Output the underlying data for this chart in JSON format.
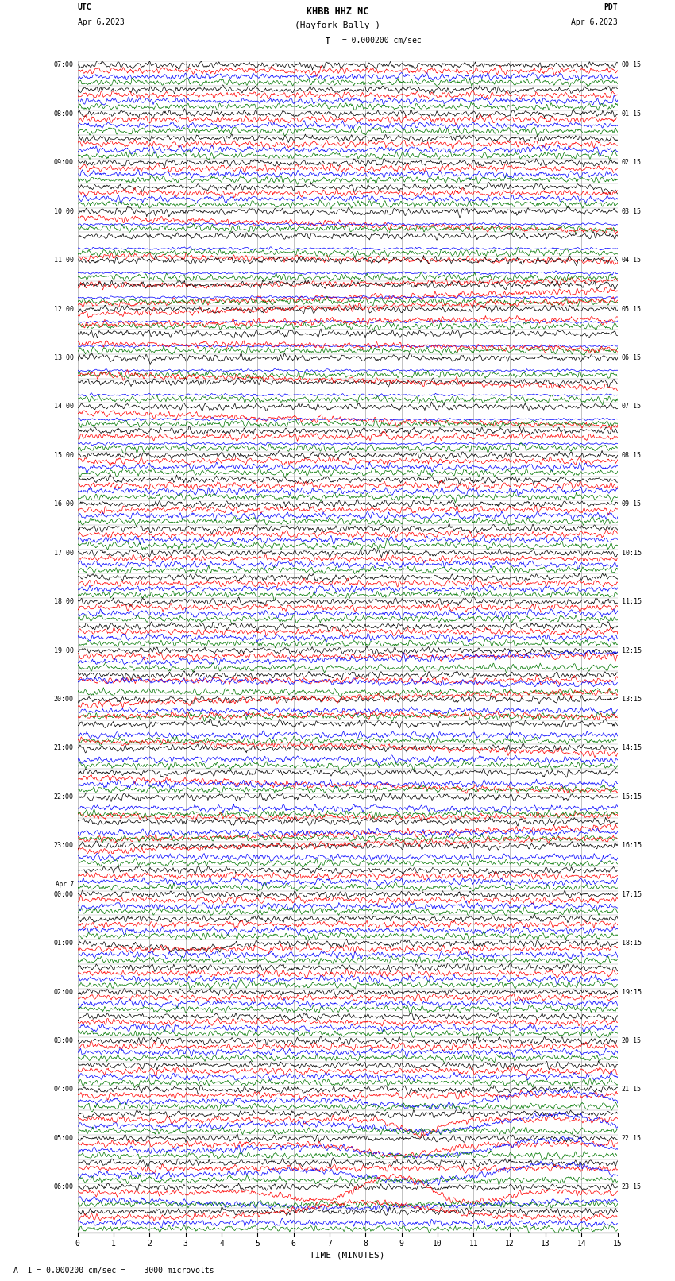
{
  "title_line1": "KHBB HHZ NC",
  "title_line2": "(Hayfork Bally )",
  "scale_text": "= 0.000200 cm/sec",
  "bottom_text": "A  I = 0.000200 cm/sec =    3000 microvolts",
  "utc_label": "UTC",
  "date_left": "Apr 6,2023",
  "pdt_label": "PDT",
  "date_right": "Apr 6,2023",
  "xlabel": "TIME (MINUTES)",
  "fig_width": 8.5,
  "fig_height": 16.13,
  "bg_color": "#ffffff",
  "trace_colors": [
    "#000000",
    "#ff0000",
    "#0000ff",
    "#007700"
  ],
  "grid_color": "#aaaaaa",
  "n_rows": 48,
  "xmin": 0,
  "xmax": 15,
  "xticks": [
    0,
    1,
    2,
    3,
    4,
    5,
    6,
    7,
    8,
    9,
    10,
    11,
    12,
    13,
    14,
    15
  ],
  "seed": 12345,
  "left_times_utc": [
    "07:00",
    "",
    "08:00",
    "",
    "09:00",
    "",
    "10:00",
    "",
    "11:00",
    "",
    "12:00",
    "",
    "13:00",
    "",
    "14:00",
    "",
    "15:00",
    "",
    "16:00",
    "",
    "17:00",
    "",
    "18:00",
    "",
    "19:00",
    "",
    "20:00",
    "",
    "21:00",
    "",
    "22:00",
    "",
    "23:00",
    "",
    "Apr 7\n00:00",
    "",
    "01:00",
    "",
    "02:00",
    "",
    "03:00",
    "",
    "04:00",
    "",
    "05:00",
    "",
    "06:00",
    ""
  ],
  "right_times_pdt": [
    "00:15",
    "",
    "01:15",
    "",
    "02:15",
    "",
    "03:15",
    "",
    "04:15",
    "",
    "05:15",
    "",
    "06:15",
    "",
    "07:15",
    "",
    "08:15",
    "",
    "09:15",
    "",
    "10:15",
    "",
    "11:15",
    "",
    "12:15",
    "",
    "13:15",
    "",
    "14:15",
    "",
    "15:15",
    "",
    "16:15",
    "",
    "17:15",
    "",
    "18:15",
    "",
    "19:15",
    "",
    "20:15",
    "",
    "21:15",
    "",
    "22:15",
    "",
    "23:15",
    ""
  ]
}
